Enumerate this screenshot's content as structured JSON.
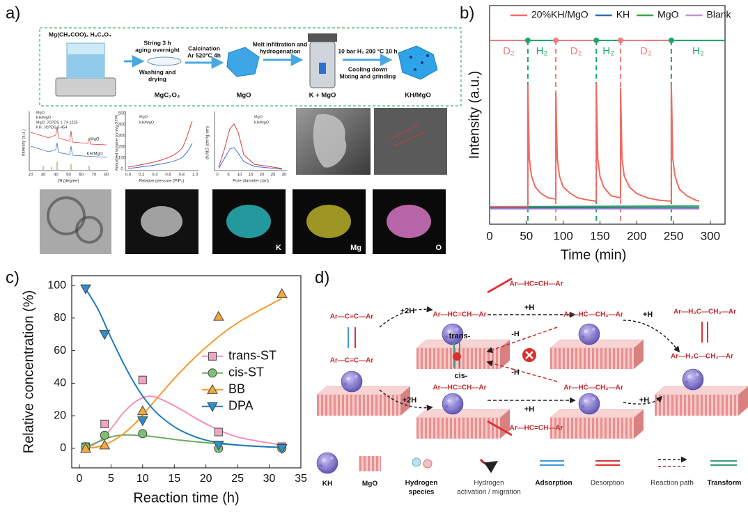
{
  "panel_labels": [
    "a)",
    "b)",
    "c)",
    "d)"
  ],
  "diagram_a": {
    "precursors": "Mg(CH₃COO)₂  H₂C₂O₄",
    "step1": [
      "String 3 h",
      "aging overnight",
      "Washing and",
      "drying"
    ],
    "step2": [
      "Calcination",
      "Ar 520°C 4h"
    ],
    "step3": [
      "Melt infiltration and",
      "hydrogenation"
    ],
    "step4": [
      "10 bar H₂ 200 °C 10 h",
      "Cooling down",
      "Mixing and grinding"
    ],
    "products": [
      "MgC₂O₄",
      "MgO",
      "K + MgO",
      "KH/MgO"
    ],
    "xrd": {
      "legend": [
        "MgO",
        "KH/MgO",
        "MgO: JCPDS 1-74-1225",
        "KH: JCPDS 3-454"
      ],
      "curve_labels": [
        "MgO",
        "KH/MgO"
      ],
      "ylabel": "Intensity (a.u.)",
      "xlabel": "2θ (degree)",
      "xticks": [
        "20",
        "30",
        "40",
        "50",
        "60",
        "70",
        "80"
      ]
    },
    "bet": {
      "legend": [
        "MgO",
        "KH/MgO"
      ],
      "ylabel": "Adsorbed volume (cm³/g STP)",
      "xlabel": "Relative pressure (P/P₀)",
      "xticks": [
        "0.0",
        "0.2",
        "0.4",
        "0.6",
        "0.8",
        "1.0"
      ],
      "yticks": [
        "0",
        "100",
        "200",
        "300",
        "400",
        "500"
      ]
    },
    "pore": {
      "legend": [
        "MgO",
        "KH/MgO"
      ],
      "ylabel": "dV/dD (cm³/g·nm)",
      "xlabel": "Pore diameter (nm)",
      "xticks": [
        "0",
        "5",
        "10",
        "15",
        "20",
        "25",
        "30"
      ]
    },
    "eds": [
      "K",
      "Mg",
      "O"
    ]
  },
  "chart_data": [
    {
      "type": "line",
      "xlabel": "Time (min)",
      "ylabel": "Intensity (a.u.)",
      "xlim": [
        0,
        320
      ],
      "xticks": [
        0,
        50,
        100,
        150,
        200,
        250,
        300
      ],
      "ylim": [
        0,
        1
      ],
      "legend": "top",
      "switch_times": [
        52,
        90,
        145,
        178,
        247
      ],
      "gas_labels": [
        "D₂",
        "H₂",
        "D₂",
        "H₂",
        "D₂",
        "H₂"
      ],
      "gas_colors": [
        "#f07c7c",
        "#1aa86a",
        "#f07c7c",
        "#1aa86a",
        "#f07c7c",
        "#1aa86a"
      ],
      "series": [
        {
          "name": "20%KH/MgO",
          "color": "#f06a62",
          "x": [
            0,
            52,
            52,
            54,
            57,
            62,
            70,
            80,
            90,
            90,
            92,
            95,
            100,
            110,
            120,
            135,
            145,
            145,
            147,
            150,
            155,
            165,
            178,
            178,
            180,
            183,
            190,
            200,
            215,
            230,
            247,
            247,
            249,
            252,
            258,
            268,
            280,
            285
          ],
          "values": [
            0.08,
            0.08,
            0.64,
            0.3,
            0.22,
            0.17,
            0.14,
            0.12,
            0.115,
            0.6,
            0.3,
            0.22,
            0.17,
            0.14,
            0.12,
            0.11,
            0.105,
            0.645,
            0.3,
            0.22,
            0.17,
            0.13,
            0.12,
            0.625,
            0.3,
            0.22,
            0.17,
            0.14,
            0.12,
            0.11,
            0.105,
            0.645,
            0.3,
            0.22,
            0.16,
            0.13,
            0.11,
            0.105
          ]
        },
        {
          "name": "KH",
          "color": "#2a6db5",
          "x": [
            0,
            285
          ],
          "values": [
            0.075,
            0.075
          ]
        },
        {
          "name": "MgO",
          "color": "#38a548",
          "x": [
            0,
            285
          ],
          "values": [
            0.08,
            0.083
          ]
        },
        {
          "name": "Blank",
          "color": "#c490dc",
          "x": [
            0,
            285
          ],
          "values": [
            0.07,
            0.07
          ]
        }
      ]
    },
    {
      "type": "scatter",
      "xlabel": "Reaction time (h)",
      "ylabel": "Relative concentration (%)",
      "xlim": [
        -1.2,
        35
      ],
      "xticks": [
        0,
        5,
        10,
        15,
        20,
        25,
        30,
        35
      ],
      "ylim": [
        -12,
        106
      ],
      "yticks": [
        0,
        20,
        40,
        60,
        80,
        100
      ],
      "legend": "center right",
      "series": [
        {
          "name": "trans-ST",
          "color": "#f590bb",
          "marker_color": "#f4a3c6",
          "marker": "square",
          "x": [
            1,
            4,
            10,
            22,
            32
          ],
          "values": [
            1,
            15,
            42,
            10,
            1
          ],
          "fit_x": [
            1,
            3,
            5,
            7,
            9,
            11,
            13,
            16,
            20,
            25,
            32
          ],
          "fit_values": [
            0,
            4,
            12,
            22,
            29,
            32,
            30,
            24,
            15,
            7,
            2
          ]
        },
        {
          "name": "cis-ST",
          "color": "#6faa5e",
          "marker_color": "#7cc176",
          "marker": "circle",
          "x": [
            1,
            4,
            10,
            22,
            32
          ],
          "values": [
            1,
            8,
            9,
            0,
            0
          ],
          "fit_x": [
            1,
            3,
            5,
            7,
            9,
            11,
            13,
            16,
            20,
            25,
            32
          ],
          "fit_values": [
            0.5,
            4,
            7,
            8.2,
            8,
            7.5,
            6.5,
            5,
            3.5,
            2,
            0.5
          ]
        },
        {
          "name": "BB",
          "color": "#f59a2c",
          "marker_color": "#f5a83a",
          "marker": "triangle-up",
          "x": [
            1,
            4,
            10,
            22,
            32
          ],
          "values": [
            0,
            2,
            23,
            81,
            95
          ],
          "fit_x": [
            1,
            3,
            5,
            7,
            9,
            11,
            13,
            16,
            20,
            25,
            32
          ],
          "fit_values": [
            0,
            1,
            4,
            9,
            16,
            25,
            34,
            47,
            62,
            77,
            92
          ]
        },
        {
          "name": "DPA",
          "color": "#1f7bbd",
          "marker_color": "#2b8fd0",
          "marker": "triangle-down",
          "x": [
            1,
            4,
            10,
            22,
            32
          ],
          "values": [
            98,
            70,
            17,
            2,
            0
          ],
          "fit_x": [
            1,
            3,
            5,
            7,
            9,
            11,
            13,
            16,
            20,
            25,
            32
          ],
          "fit_values": [
            98,
            85,
            68,
            52,
            38,
            27,
            19,
            11,
            5,
            2,
            0.5
          ]
        }
      ]
    }
  ],
  "diagram_d": {
    "reactant": "Ar—C≡C—Ar",
    "alkene": "Ar—HC=CH—Ar",
    "radical": "Ar—HĊ—CH₂—Ar",
    "alkane": "Ar—H₂C—CH₂—Ar",
    "isomers": [
      "trans-",
      "cis-"
    ],
    "steps": {
      "add2": "+2H",
      "add1": "+H",
      "remove1": "-H"
    },
    "legend": [
      [
        "KH"
      ],
      [
        "MgO"
      ],
      [
        "Hydrogen",
        "species"
      ],
      [
        "Hydrogen",
        "activation / migration"
      ],
      [
        "Adsorption"
      ],
      [
        "Desorption"
      ],
      [
        "Reaction path"
      ],
      [
        "Transform"
      ]
    ]
  }
}
